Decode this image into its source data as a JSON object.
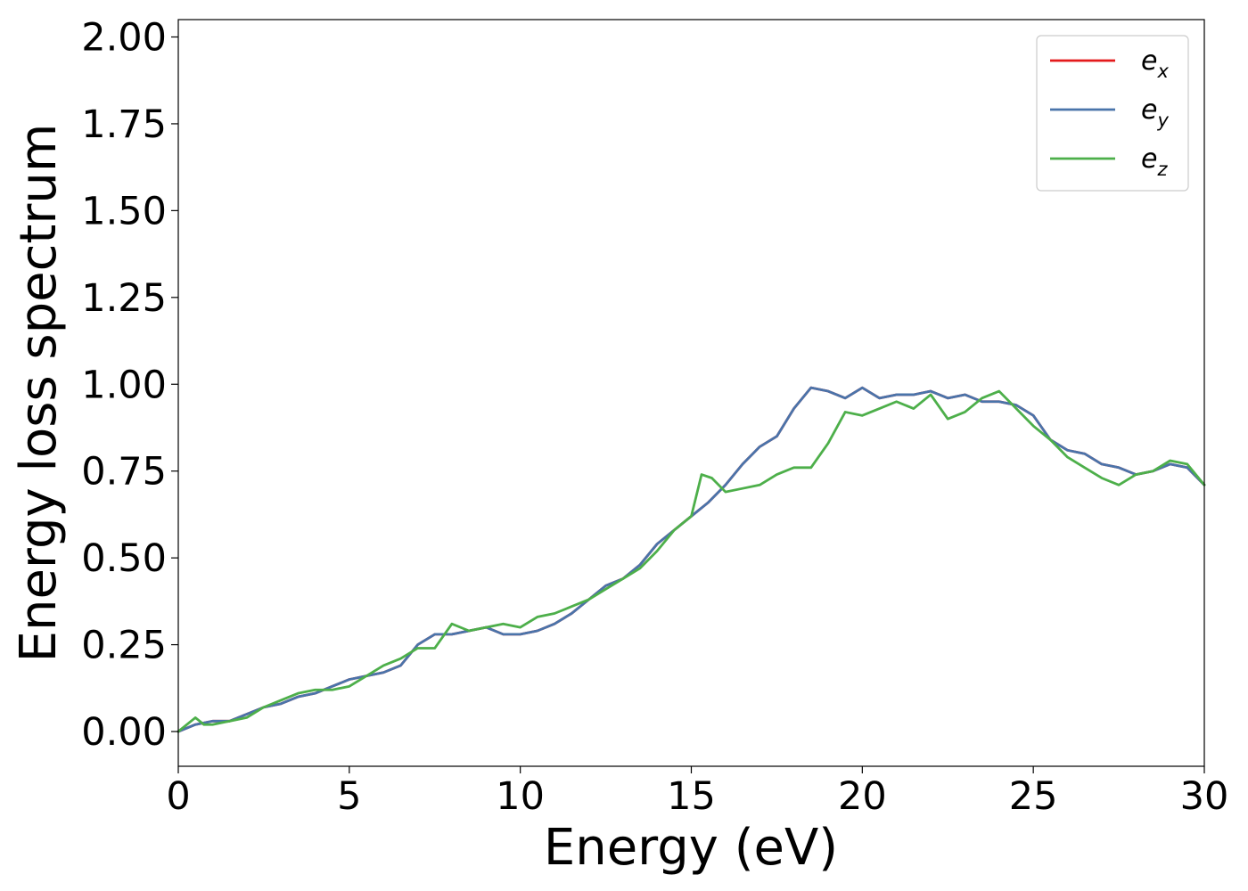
{
  "chart_data": {
    "type": "line",
    "title": "",
    "xlabel": "Energy (eV)",
    "ylabel": "Energy loss spectrum",
    "xlim": [
      0,
      30
    ],
    "ylim": [
      -0.1,
      2.05
    ],
    "xticks": [
      0,
      5,
      10,
      15,
      20,
      25,
      30
    ],
    "xtick_labels": [
      "0",
      "5",
      "10",
      "15",
      "20",
      "25",
      "30"
    ],
    "yticks": [
      0.0,
      0.25,
      0.5,
      0.75,
      1.0,
      1.25,
      1.5,
      1.75,
      2.0
    ],
    "ytick_labels": [
      "0.00",
      "0.25",
      "0.50",
      "0.75",
      "1.00",
      "1.25",
      "1.50",
      "1.75",
      "2.00"
    ],
    "grid": false,
    "legend_position": "top-right",
    "series": [
      {
        "name": "e",
        "subscript": "x",
        "color": "#e41a1c",
        "x": [
          0,
          0.5,
          1,
          1.5,
          2,
          2.5,
          3,
          3.5,
          4,
          4.5,
          5,
          5.5,
          6,
          6.5,
          7,
          7.5,
          8,
          8.5,
          9,
          9.5,
          10,
          10.5,
          11,
          11.5,
          12,
          12.5,
          13,
          13.5,
          14,
          14.5,
          15,
          15.5,
          16,
          16.5,
          17,
          17.5,
          18,
          18.5,
          19,
          19.5,
          20,
          20.5,
          21,
          21.5,
          22,
          22.5,
          23,
          23.5,
          24,
          24.5,
          25,
          25.5,
          26,
          26.5,
          27,
          27.5,
          28,
          28.5,
          29,
          29.5,
          30
        ],
        "y": [
          0.0,
          0.02,
          0.03,
          0.03,
          0.05,
          0.07,
          0.08,
          0.1,
          0.11,
          0.13,
          0.15,
          0.16,
          0.17,
          0.19,
          0.25,
          0.28,
          0.28,
          0.29,
          0.3,
          0.28,
          0.28,
          0.29,
          0.31,
          0.34,
          0.38,
          0.42,
          0.44,
          0.48,
          0.54,
          0.58,
          0.62,
          0.66,
          0.71,
          0.77,
          0.82,
          0.85,
          0.93,
          0.99,
          0.98,
          0.96,
          0.99,
          0.96,
          0.97,
          0.97,
          0.98,
          0.96,
          0.97,
          0.95,
          0.95,
          0.94,
          0.91,
          0.84,
          0.81,
          0.8,
          0.77,
          0.76,
          0.74,
          0.75,
          0.77,
          0.76,
          0.71
        ]
      },
      {
        "name": "e",
        "subscript": "y",
        "color": "#4a74aa",
        "x": [
          0,
          0.5,
          1,
          1.5,
          2,
          2.5,
          3,
          3.5,
          4,
          4.5,
          5,
          5.5,
          6,
          6.5,
          7,
          7.5,
          8,
          8.5,
          9,
          9.5,
          10,
          10.5,
          11,
          11.5,
          12,
          12.5,
          13,
          13.5,
          14,
          14.5,
          15,
          15.5,
          16,
          16.5,
          17,
          17.5,
          18,
          18.5,
          19,
          19.5,
          20,
          20.5,
          21,
          21.5,
          22,
          22.5,
          23,
          23.5,
          24,
          24.5,
          25,
          25.5,
          26,
          26.5,
          27,
          27.5,
          28,
          28.5,
          29,
          29.5,
          30
        ],
        "y": [
          0.0,
          0.02,
          0.03,
          0.03,
          0.05,
          0.07,
          0.08,
          0.1,
          0.11,
          0.13,
          0.15,
          0.16,
          0.17,
          0.19,
          0.25,
          0.28,
          0.28,
          0.29,
          0.3,
          0.28,
          0.28,
          0.29,
          0.31,
          0.34,
          0.38,
          0.42,
          0.44,
          0.48,
          0.54,
          0.58,
          0.62,
          0.66,
          0.71,
          0.77,
          0.82,
          0.85,
          0.93,
          0.99,
          0.98,
          0.96,
          0.99,
          0.96,
          0.97,
          0.97,
          0.98,
          0.96,
          0.97,
          0.95,
          0.95,
          0.94,
          0.91,
          0.84,
          0.81,
          0.8,
          0.77,
          0.76,
          0.74,
          0.75,
          0.77,
          0.76,
          0.71
        ]
      },
      {
        "name": "e",
        "subscript": "z",
        "color": "#4daf4a",
        "x": [
          0,
          0.5,
          0.75,
          1,
          1.5,
          2,
          2.5,
          3,
          3.5,
          4,
          4.5,
          5,
          5.5,
          6,
          6.5,
          7,
          7.5,
          8,
          8.5,
          9,
          9.5,
          10,
          10.5,
          11,
          11.5,
          12,
          12.5,
          13,
          13.5,
          14,
          14.5,
          15,
          15.3,
          15.6,
          16,
          16.5,
          17,
          17.5,
          18,
          18.5,
          19,
          19.5,
          20,
          20.5,
          21,
          21.5,
          22,
          22.5,
          23,
          23.5,
          24,
          24.5,
          25,
          25.5,
          26,
          26.5,
          27,
          27.5,
          28,
          28.5,
          29,
          29.5,
          30
        ],
        "y": [
          0.0,
          0.04,
          0.02,
          0.02,
          0.03,
          0.04,
          0.07,
          0.09,
          0.11,
          0.12,
          0.12,
          0.13,
          0.16,
          0.19,
          0.21,
          0.24,
          0.24,
          0.31,
          0.29,
          0.3,
          0.31,
          0.3,
          0.33,
          0.34,
          0.36,
          0.38,
          0.41,
          0.44,
          0.47,
          0.52,
          0.58,
          0.62,
          0.74,
          0.73,
          0.69,
          0.7,
          0.71,
          0.74,
          0.76,
          0.76,
          0.83,
          0.92,
          0.91,
          0.93,
          0.95,
          0.93,
          0.97,
          0.9,
          0.92,
          0.96,
          0.98,
          0.93,
          0.88,
          0.84,
          0.79,
          0.76,
          0.73,
          0.71,
          0.74,
          0.75,
          0.78,
          0.77,
          0.71
        ]
      }
    ]
  }
}
